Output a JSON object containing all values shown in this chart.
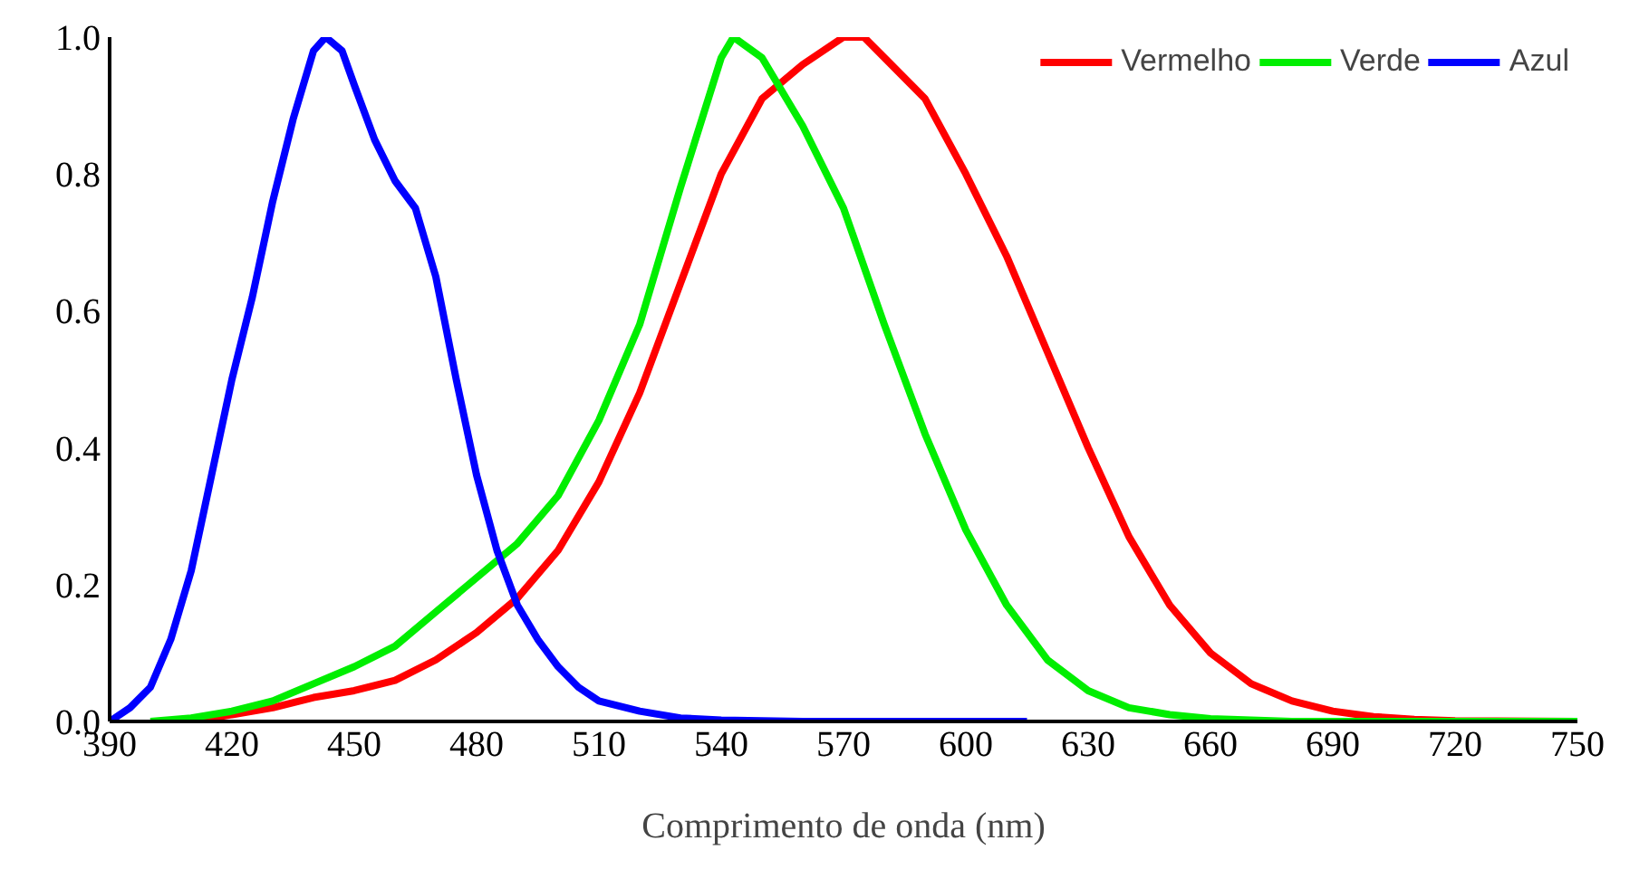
{
  "chart_data": {
    "type": "line",
    "xlabel": "Comprimento de onda (nm)",
    "xlim": [
      390,
      750
    ],
    "xticks": [
      390,
      420,
      450,
      480,
      510,
      540,
      570,
      600,
      630,
      660,
      690,
      720,
      750
    ],
    "ylim": [
      0,
      1
    ],
    "yticks": [
      {
        "value": 0,
        "label": "0.0"
      },
      {
        "value": 0.2,
        "label": "0.2"
      },
      {
        "value": 0.4,
        "label": "0.4"
      },
      {
        "value": 0.6,
        "label": "0.6"
      },
      {
        "value": 0.8,
        "label": "0.8"
      },
      {
        "value": 1,
        "label": "1.0"
      }
    ],
    "grid": false,
    "legend": "top right",
    "marker": "none",
    "line_style": "solid",
    "series": [
      {
        "name": "Vermelho",
        "color": "#ff0000",
        "x": [
          410,
          420,
          430,
          440,
          450,
          460,
          470,
          480,
          490,
          500,
          510,
          520,
          530,
          540,
          550,
          560,
          570,
          575,
          580,
          590,
          600,
          610,
          620,
          630,
          640,
          650,
          660,
          670,
          680,
          690,
          700,
          710,
          720,
          750
        ],
        "values": [
          0,
          0.01,
          0.02,
          0.035,
          0.045,
          0.06,
          0.09,
          0.13,
          0.18,
          0.25,
          0.35,
          0.48,
          0.64,
          0.8,
          0.91,
          0.96,
          1.0,
          1.0,
          0.97,
          0.91,
          0.8,
          0.68,
          0.54,
          0.4,
          0.27,
          0.17,
          0.1,
          0.055,
          0.03,
          0.015,
          0.007,
          0.003,
          0.001,
          0
        ]
      },
      {
        "name": "Verde",
        "color": "#00ee00",
        "x": [
          400,
          410,
          420,
          430,
          440,
          450,
          460,
          470,
          480,
          490,
          500,
          510,
          520,
          530,
          540,
          543,
          550,
          560,
          570,
          580,
          590,
          600,
          610,
          620,
          630,
          640,
          650,
          660,
          680,
          750
        ],
        "values": [
          0,
          0.005,
          0.015,
          0.03,
          0.055,
          0.08,
          0.11,
          0.16,
          0.21,
          0.26,
          0.33,
          0.44,
          0.58,
          0.78,
          0.97,
          1.0,
          0.97,
          0.87,
          0.75,
          0.58,
          0.42,
          0.28,
          0.17,
          0.09,
          0.045,
          0.02,
          0.01,
          0.004,
          0,
          0
        ]
      },
      {
        "name": "Azul",
        "color": "#0000ff",
        "x": [
          390,
          395,
          400,
          405,
          410,
          415,
          420,
          425,
          430,
          435,
          440,
          443,
          447,
          450,
          455,
          460,
          465,
          470,
          475,
          480,
          485,
          490,
          495,
          500,
          505,
          510,
          520,
          530,
          540,
          560,
          600,
          615
        ],
        "values": [
          0,
          0.02,
          0.05,
          0.12,
          0.22,
          0.36,
          0.5,
          0.62,
          0.76,
          0.88,
          0.98,
          1.0,
          0.98,
          0.93,
          0.85,
          0.79,
          0.75,
          0.65,
          0.5,
          0.36,
          0.25,
          0.17,
          0.12,
          0.08,
          0.05,
          0.03,
          0.015,
          0.005,
          0.002,
          0,
          0,
          0
        ]
      }
    ]
  }
}
